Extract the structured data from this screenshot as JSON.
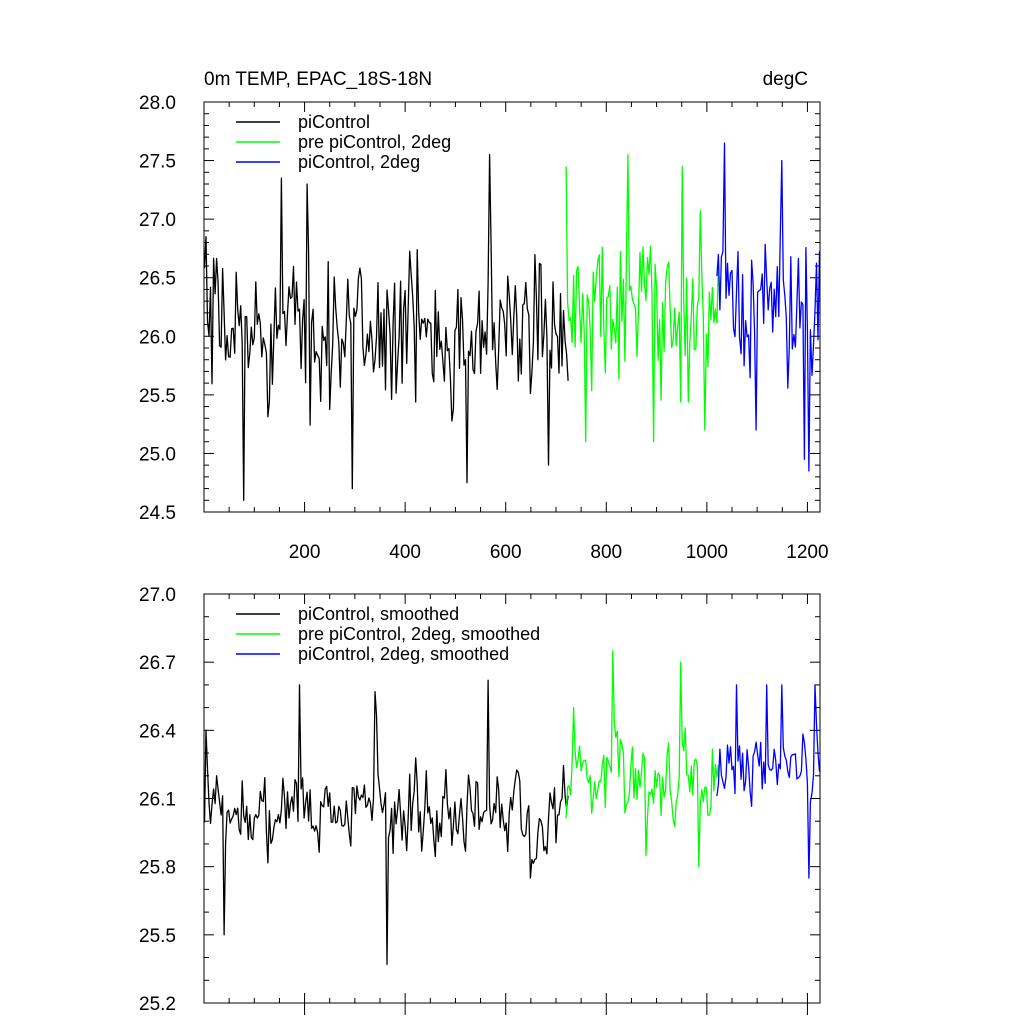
{
  "chart_data": [
    {
      "type": "line",
      "title_left": "0m TEMP, EPAC_18S-18N",
      "title_right": "degC",
      "xlabel": "",
      "ylabel": "",
      "xlim": [
        0,
        1225
      ],
      "ylim": [
        24.5,
        28.0
      ],
      "yticks": [
        "28.0",
        "27.5",
        "27.0",
        "26.5",
        "26.0",
        "25.5",
        "25.0",
        "24.5"
      ],
      "xticks": [
        "200",
        "400",
        "600",
        "800",
        "1000",
        "1200"
      ],
      "legend_position": "top-left",
      "series": [
        {
          "name": "piControl",
          "color": "#000000",
          "x_range": [
            1,
            725
          ],
          "mean": 26.05,
          "spread": 0.4,
          "min": 24.6,
          "max": 27.55,
          "peaks": [
            [
              5,
              26.85
            ],
            [
              81,
              24.6
            ],
            [
              155,
              27.35
            ],
            [
              205,
              27.3
            ],
            [
              295,
              24.7
            ],
            [
              525,
              24.75
            ],
            [
              570,
              27.55
            ],
            [
              685,
              24.9
            ]
          ]
        },
        {
          "name": "pre piControl, 2deg",
          "color": "#00ff00",
          "x_range": [
            720,
            1025
          ],
          "mean": 26.2,
          "spread": 0.45,
          "min": 25.05,
          "max": 27.55,
          "peaks": [
            [
              722,
              27.45
            ],
            [
              760,
              25.1
            ],
            [
              845,
              27.55
            ],
            [
              895,
              25.1
            ],
            [
              952,
              27.45
            ],
            [
              998,
              25.2
            ]
          ]
        },
        {
          "name": "piControl, 2deg",
          "color": "#0000ff",
          "x_range": [
            1020,
            1225
          ],
          "mean": 26.25,
          "spread": 0.45,
          "min": 24.85,
          "max": 27.65,
          "peaks": [
            [
              1035,
              27.65
            ],
            [
              1098,
              25.2
            ],
            [
              1150,
              27.5
            ],
            [
              1196,
              24.95
            ],
            [
              1205,
              24.85
            ]
          ]
        }
      ]
    },
    {
      "type": "line",
      "xlabel": "",
      "ylabel": "",
      "xlim": [
        0,
        1225
      ],
      "ylim": [
        25.2,
        27.0
      ],
      "yticks": [
        "27.0",
        "26.7",
        "26.4",
        "26.1",
        "25.8",
        "25.5",
        "25.2"
      ],
      "legend_position": "top-left",
      "series": [
        {
          "name": "piControl, smoothed",
          "color": "#000000",
          "x_range": [
            1,
            725
          ],
          "mean": 26.05,
          "spread": 0.17,
          "min": 25.37,
          "max": 26.62,
          "peaks": [
            [
              5,
              26.4
            ],
            [
              40,
              25.5
            ],
            [
              190,
              26.6
            ],
            [
              340,
              26.57
            ],
            [
              365,
              25.37
            ],
            [
              565,
              26.62
            ],
            [
              650,
              25.75
            ]
          ]
        },
        {
          "name": "pre piControl, 2deg, smoothed",
          "color": "#00ff00",
          "x_range": [
            720,
            1025
          ],
          "mean": 26.2,
          "spread": 0.17,
          "min": 25.8,
          "max": 26.75,
          "peaks": [
            [
              735,
              26.5
            ],
            [
              770,
              26.2
            ],
            [
              815,
              26.75
            ],
            [
              880,
              25.85
            ],
            [
              950,
              26.7
            ],
            [
              985,
              25.8
            ]
          ]
        },
        {
          "name": "piControl, 2deg, smoothed",
          "color": "#0000ff",
          "x_range": [
            1020,
            1225
          ],
          "mean": 26.22,
          "spread": 0.13,
          "min": 25.75,
          "max": 26.6,
          "peaks": [
            [
              1060,
              26.6
            ],
            [
              1120,
              26.6
            ],
            [
              1150,
              26.6
            ],
            [
              1205,
              25.75
            ],
            [
              1215,
              26.6
            ]
          ]
        }
      ]
    }
  ]
}
